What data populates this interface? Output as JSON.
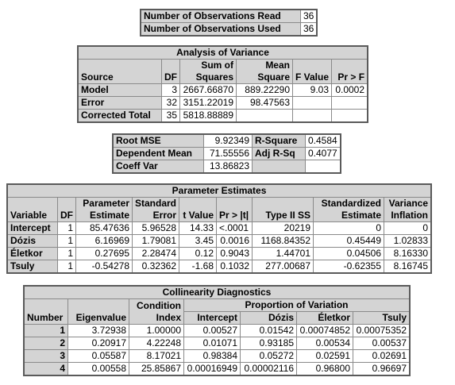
{
  "observations": {
    "rows": [
      {
        "label": "Number of Observations Read",
        "value": "36"
      },
      {
        "label": "Number of Observations Used",
        "value": "36"
      }
    ]
  },
  "anova": {
    "title": "Analysis of Variance",
    "headers": {
      "source": "Source",
      "df": "DF",
      "ss_top": "Sum of",
      "ss_bottom": "Squares",
      "ms_top": "Mean",
      "ms_bottom": "Square",
      "f": "F Value",
      "p": "Pr > F"
    },
    "rows": [
      {
        "source": "Model",
        "df": "3",
        "ss": "2667.66870",
        "ms": "889.22290",
        "f": "9.03",
        "p": "0.0002"
      },
      {
        "source": "Error",
        "df": "32",
        "ss": "3151.22019",
        "ms": "98.47563",
        "f": "",
        "p": ""
      },
      {
        "source": "Corrected Total",
        "df": "35",
        "ss": "5818.88889",
        "ms": "",
        "f": "",
        "p": ""
      }
    ]
  },
  "fit": {
    "rows": [
      {
        "l1": "Root MSE",
        "v1": "9.92349",
        "l2": "R-Square",
        "v2": "0.4584"
      },
      {
        "l1": "Dependent Mean",
        "v1": "71.55556",
        "l2": "Adj R-Sq",
        "v2": "0.4077"
      },
      {
        "l1": "Coeff Var",
        "v1": "13.86823",
        "l2": "",
        "v2": ""
      }
    ]
  },
  "params": {
    "title": "Parameter Estimates",
    "headers": {
      "variable": "Variable",
      "df": "DF",
      "est_top": "Parameter",
      "est_bottom": "Estimate",
      "se_top": "Standard",
      "se_bottom": "Error",
      "t": "t Value",
      "p": "Pr > |t|",
      "ss2": "Type II SS",
      "std_top": "Standardized",
      "std_bottom": "Estimate",
      "vif_top": "Variance",
      "vif_bottom": "Inflation"
    },
    "rows": [
      {
        "variable": "Intercept",
        "df": "1",
        "est": "85.47636",
        "se": "5.96528",
        "t": "14.33",
        "p": "<.0001",
        "ss2": "20219",
        "std": "0",
        "vif": "0"
      },
      {
        "variable": "Dózis",
        "df": "1",
        "est": "6.16969",
        "se": "1.79081",
        "t": "3.45",
        "p": "0.0016",
        "ss2": "1168.84352",
        "std": "0.45449",
        "vif": "1.02833"
      },
      {
        "variable": "Életkor",
        "df": "1",
        "est": "0.27695",
        "se": "2.28474",
        "t": "0.12",
        "p": "0.9043",
        "ss2": "1.44701",
        "std": "0.04506",
        "vif": "8.16330"
      },
      {
        "variable": "Tsuly",
        "df": "1",
        "est": "-0.54278",
        "se": "0.32362",
        "t": "-1.68",
        "p": "0.1032",
        "ss2": "277.00687",
        "std": "-0.62355",
        "vif": "8.16745"
      }
    ]
  },
  "collinearity": {
    "title": "Collinearity Diagnostics",
    "headers": {
      "number": "Number",
      "eigen": "Eigenvalue",
      "ci_top": "Condition",
      "ci_bottom": "Index",
      "prop": "Proportion of Variation",
      "intercept": "Intercept",
      "dozis": "Dózis",
      "eletkor": "Életkor",
      "tsuly": "Tsuly"
    },
    "rows": [
      {
        "n": "1",
        "eig": "3.72938",
        "ci": "1.00000",
        "intercept": "0.00527",
        "dozis": "0.01542",
        "eletkor": "0.00074852",
        "tsuly": "0.00075352"
      },
      {
        "n": "2",
        "eig": "0.20917",
        "ci": "4.22248",
        "intercept": "0.01071",
        "dozis": "0.93185",
        "eletkor": "0.00534",
        "tsuly": "0.00537"
      },
      {
        "n": "3",
        "eig": "0.05587",
        "ci": "8.17021",
        "intercept": "0.98384",
        "dozis": "0.05272",
        "eletkor": "0.02591",
        "tsuly": "0.02691"
      },
      {
        "n": "4",
        "eig": "0.00558",
        "ci": "25.85867",
        "intercept": "0.00016949",
        "dozis": "0.00002116",
        "eletkor": "0.96800",
        "tsuly": "0.96697"
      }
    ]
  }
}
